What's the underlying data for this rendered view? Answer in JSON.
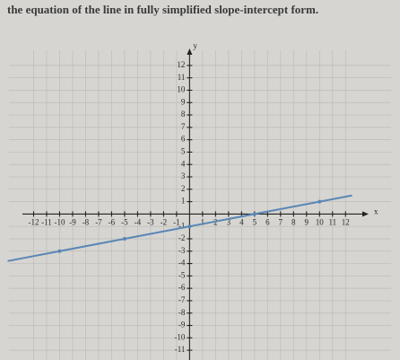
{
  "question": "the equation of the line in fully simplified slope-intercept form.",
  "chart_data": {
    "type": "line",
    "xlabel": "x",
    "ylabel": "y",
    "x": [
      -14,
      -10,
      -5,
      0,
      5,
      10,
      12.5
    ],
    "values": [
      -3.8,
      -3,
      -2,
      -1,
      0,
      1,
      1.5
    ],
    "color": "#5a86b6",
    "xlim": [
      -13,
      13.5
    ],
    "ylim": [
      -11.5,
      12.5
    ],
    "xticks": [
      -12,
      -11,
      -10,
      -9,
      -8,
      -7,
      -6,
      -5,
      -4,
      -3,
      -2,
      -1,
      1,
      2,
      3,
      4,
      5,
      6,
      7,
      8,
      9,
      10,
      11,
      12
    ],
    "yticks": [
      -11,
      -10,
      -9,
      -8,
      -7,
      -6,
      -5,
      -4,
      -3,
      -2,
      -1,
      1,
      2,
      3,
      4,
      5,
      6,
      7,
      8,
      9,
      10,
      11,
      12
    ],
    "grid": true
  }
}
